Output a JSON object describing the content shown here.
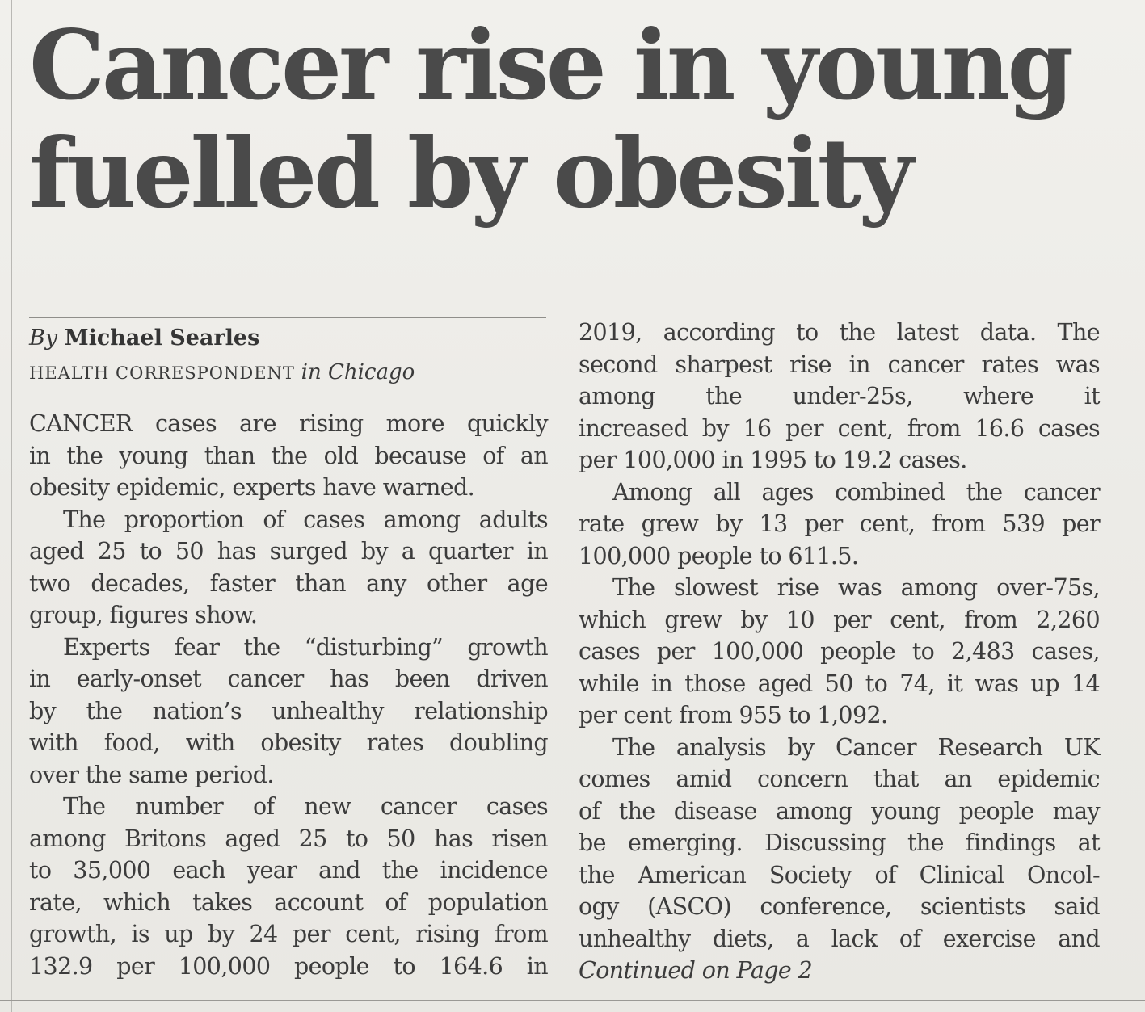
{
  "headline": {
    "line1": "Cancer rise in young",
    "line2": "fuelled by obesity"
  },
  "byline": {
    "by": "By",
    "author": "Michael Searles",
    "role": "HEALTH CORRESPONDENT",
    "location": "in Chicago"
  },
  "left_column": {
    "lines": [
      "CANCER cases are rising more quickly",
      "in the young than the old because of an",
      "obesity epidemic, experts have warned.",
      "The proportion of cases among adults",
      "aged 25 to 50 has surged by a quarter in",
      "two decades, faster than any other age",
      "group, figures show.",
      "Experts fear the “disturbing” growth",
      "in early-onset cancer has been driven",
      "by the nation’s unhealthy relationship",
      "with food, with obesity rates doubling",
      "over the same period.",
      "The number of new cancer cases",
      "among Britons aged 25 to 50 has risen",
      "to 35,000 each year and the incidence",
      "rate, which takes account of population",
      "growth, is up by 24 per cent, rising from",
      "132.9 per 100,000 people to 164.6 in"
    ]
  },
  "right_column": {
    "lines": [
      "2019, according to the latest data. The",
      "second sharpest rise in cancer rates was",
      "among the under-25s, where it",
      "increased by 16 per cent, from 16.6 cases",
      "per 100,000 in 1995 to 19.2 cases.",
      "Among all ages combined the cancer",
      "rate grew by 13 per cent, from 539 per",
      "100,000 people to 611.5.",
      "The slowest rise was among over-75s,",
      "which grew by 10 per cent, from 2,260",
      "cases per 100,000 people to 2,483 cases,",
      "while in those aged 50 to 74, it was up 14",
      "per cent from 955 to 1,092.",
      "The analysis by Cancer Research UK",
      "comes amid concern that an epidemic",
      "of the disease among young people may",
      "be emerging. Discussing the findings at",
      "the American Society of Clinical Oncol-",
      "ogy (ASCO) conference, scientists said",
      "unhealthy diets, a lack of exercise and"
    ],
    "continued": "Continued on Page 2"
  }
}
